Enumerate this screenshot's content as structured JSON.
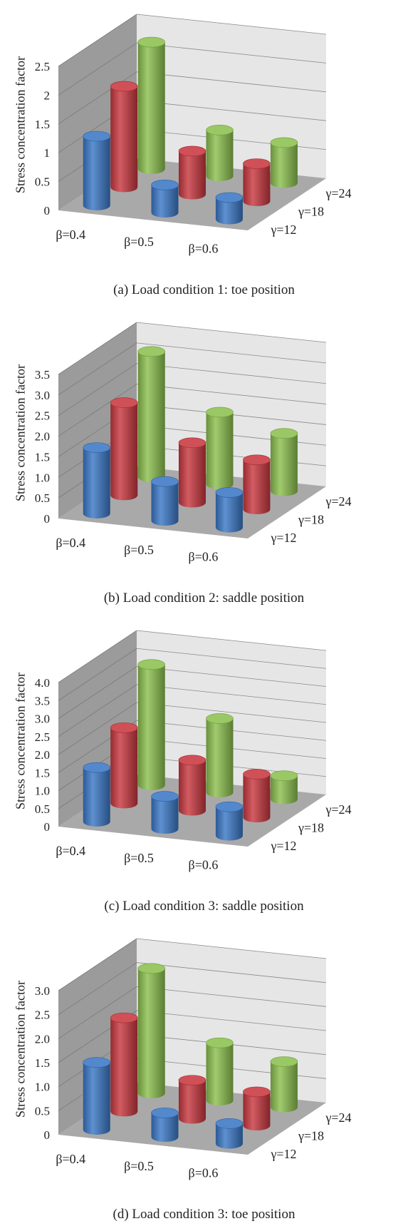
{
  "chart_data": [
    {
      "type": "bar",
      "ylabel": "Stress concentration factor",
      "caption": "(a) Load condition 1: toe position",
      "ylim": [
        0,
        2.5
      ],
      "ticks": [
        "0",
        "0.5",
        "1",
        "1.5",
        "2",
        "2.5"
      ],
      "tick_values": [
        0,
        0.5,
        1,
        1.5,
        2,
        2.5
      ],
      "categories": [
        "β=0.4",
        "β=0.5",
        "β=0.6"
      ],
      "series": [
        {
          "name": "γ=12",
          "values": [
            1.2,
            0.48,
            0.38
          ],
          "color": "#3b78c6"
        },
        {
          "name": "γ=18",
          "values": [
            1.75,
            0.75,
            0.65
          ],
          "color": "#c8383f"
        },
        {
          "name": "γ=24",
          "values": [
            2.2,
            0.8,
            0.7
          ],
          "color": "#8cc04f"
        }
      ],
      "grid": true
    },
    {
      "type": "bar",
      "ylabel": "Stress concentration factor",
      "caption": "(b) Load condition 2: saddle position",
      "ylim": [
        0,
        3.5
      ],
      "ticks": [
        "0",
        "0.5",
        "1.0",
        "1.5",
        "2.0",
        "2.5",
        "3.0",
        "3.5"
      ],
      "tick_values": [
        0,
        0.5,
        1,
        1.5,
        2,
        2.5,
        3,
        3.5
      ],
      "categories": [
        "β=0.4",
        "β=0.5",
        "β=0.6"
      ],
      "series": [
        {
          "name": "γ=12",
          "values": [
            1.6,
            0.95,
            0.85
          ],
          "color": "#3b78c6"
        },
        {
          "name": "γ=18",
          "values": [
            2.25,
            1.45,
            1.2
          ],
          "color": "#c8383f"
        },
        {
          "name": "γ=24",
          "values": [
            3.05,
            1.75,
            1.4
          ],
          "color": "#8cc04f"
        }
      ],
      "grid": true
    },
    {
      "type": "bar",
      "ylabel": "Stress concentration factor",
      "caption": "(c) Load condition 3: saddle position",
      "ylim": [
        0,
        4.0
      ],
      "ticks": [
        "0",
        "0.5",
        "1.0",
        "1.5",
        "2.0",
        "2.5",
        "3.0",
        "3.5",
        "4.0"
      ],
      "tick_values": [
        0,
        0.5,
        1,
        1.5,
        2,
        2.5,
        3,
        3.5,
        4
      ],
      "categories": [
        "β=0.4",
        "β=0.5",
        "β=0.6"
      ],
      "series": [
        {
          "name": "γ=12",
          "values": [
            1.5,
            0.9,
            0.8
          ],
          "color": "#3b78c6"
        },
        {
          "name": "γ=18",
          "values": [
            2.1,
            1.4,
            1.2
          ],
          "color": "#c8383f"
        },
        {
          "name": "γ=24",
          "values": [
            3.35,
            2.05,
            0.65
          ],
          "color": "#8cc04f"
        }
      ],
      "grid": true
    },
    {
      "type": "bar",
      "ylabel": "Stress concentration factor",
      "caption": "(d) Load condition 3: toe position",
      "ylim": [
        0,
        3.0
      ],
      "ticks": [
        "0",
        "0.5",
        "1.0",
        "1.5",
        "2.0",
        "2.5",
        "3.0"
      ],
      "tick_values": [
        0,
        0.5,
        1,
        1.5,
        2,
        2.5,
        3
      ],
      "categories": [
        "β=0.4",
        "β=0.5",
        "β=0.6"
      ],
      "series": [
        {
          "name": "γ=12",
          "values": [
            1.4,
            0.5,
            0.42
          ],
          "color": "#3b78c6"
        },
        {
          "name": "γ=18",
          "values": [
            1.95,
            0.8,
            0.7
          ],
          "color": "#c8383f"
        },
        {
          "name": "γ=24",
          "values": [
            2.6,
            1.2,
            0.95
          ],
          "color": "#8cc04f"
        }
      ],
      "grid": true
    }
  ]
}
